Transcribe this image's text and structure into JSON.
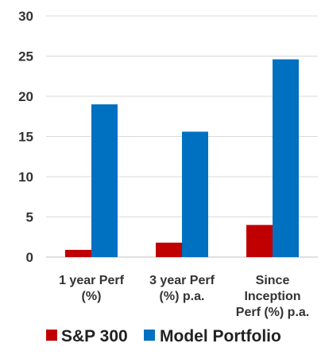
{
  "chart_data": {
    "type": "bar",
    "categories": [
      [
        "1 year Perf",
        "(%)"
      ],
      [
        "3 year Perf",
        "(%) p.a."
      ],
      [
        "Since",
        "Inception",
        "Perf (%) p.a."
      ]
    ],
    "series": [
      {
        "name": "S&P 300",
        "color": "#c00000",
        "values": [
          0.9,
          1.8,
          4.0
        ]
      },
      {
        "name": "Model Portfolio",
        "color": "#0070c0",
        "values": [
          19.0,
          15.6,
          24.6
        ]
      }
    ],
    "ylim": [
      0,
      30
    ],
    "yticks": [
      0,
      5,
      10,
      15,
      20,
      25,
      30
    ],
    "grid": true,
    "legend": "bottom"
  }
}
